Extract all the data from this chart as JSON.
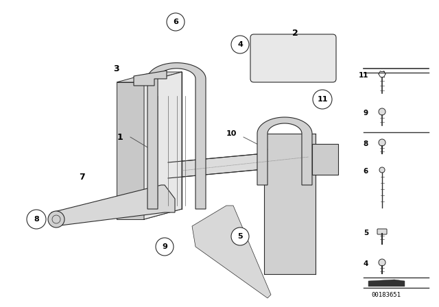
{
  "bg_color": "#ffffff",
  "fig_width": 6.4,
  "fig_height": 4.48,
  "dpi": 100,
  "part_id": "00183651",
  "lc": "#2a2a2a",
  "lc_light": "#888888",
  "legend_items": [
    {
      "num": "11",
      "has_top_line": true,
      "bolt_type": "hex_long"
    },
    {
      "num": "9",
      "has_top_line": false,
      "bolt_type": "hex_medium"
    },
    {
      "num": "8",
      "has_top_line": true,
      "bolt_type": "hex_short"
    },
    {
      "num": "6",
      "has_top_line": false,
      "bolt_type": "long_bolt"
    },
    {
      "num": "5",
      "has_top_line": false,
      "bolt_type": "pan_head"
    },
    {
      "num": "4",
      "has_top_line": false,
      "bolt_type": "hex_short2"
    }
  ]
}
